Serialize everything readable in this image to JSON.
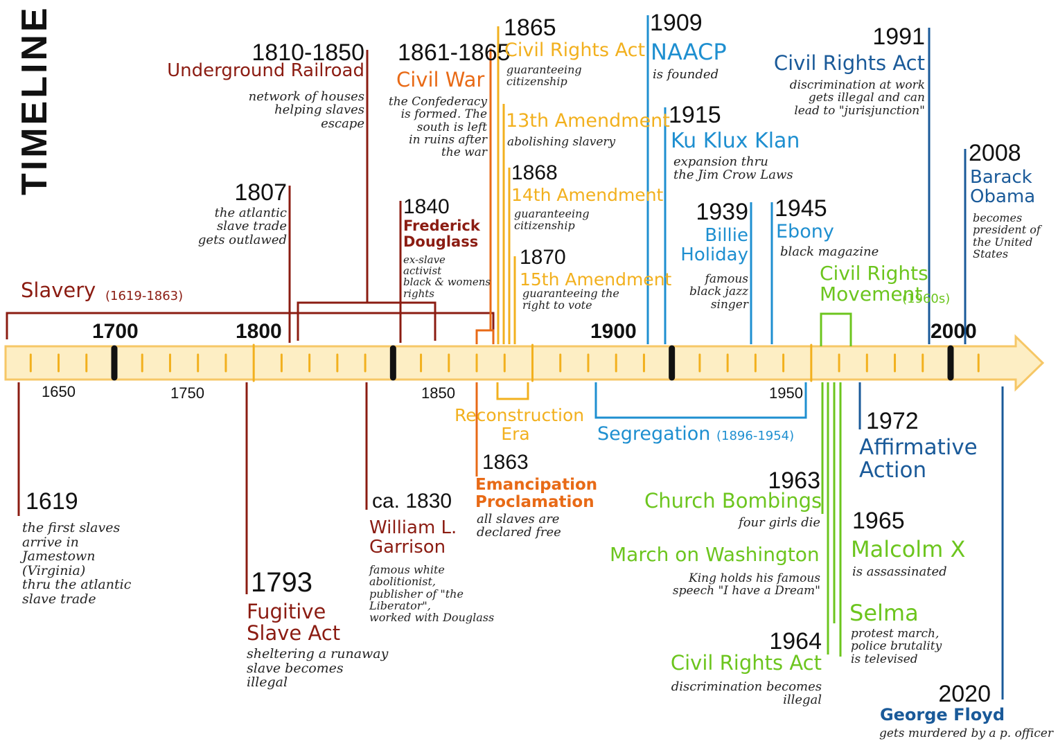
{
  "title": "TIMELINE",
  "colors": {
    "darkred": "#8b1c12",
    "orange": "#e86a16",
    "yellow": "#f2b01e",
    "lightblue": "#1e8fd0",
    "darkblue": "#1a5a99",
    "green": "#6cc51e",
    "axis_fill": "#fdeec4",
    "axis_edge": "#f6c766"
  },
  "axis": {
    "major_labels": [
      "1700",
      "1800",
      "1900",
      "2000"
    ],
    "minor_labels": [
      "1650",
      "1750",
      "1850",
      "1950"
    ]
  },
  "periods": {
    "slavery": {
      "label": "Slavery",
      "range": "(1619-1863)"
    },
    "reconstruction": {
      "label": "Reconstruction\nEra"
    },
    "segregation": {
      "label": "Segregation",
      "range": "(1896-1954)"
    },
    "civil_rights_movement": {
      "label": "Civil Rights\nMovement",
      "range": "(1960s)"
    }
  },
  "events": {
    "underground_railroad": {
      "year": "1810-1850",
      "title": "Underground Railroad",
      "desc": "network of houses\nhelping slaves\nescape"
    },
    "slave_trade_outlawed": {
      "year": "1807",
      "desc": "the atlantic\nslave trade\ngets outlawed"
    },
    "civil_war": {
      "year": "1861-1865",
      "title": "Civil War",
      "desc": "the Confederacy\nis formed. The\nsouth is left\nin ruins after\nthe war"
    },
    "douglass": {
      "year": "1840",
      "title": "Frederick\nDouglass",
      "desc": "ex-slave\nactivist\nblack & womens\nrights"
    },
    "cra_1865": {
      "year": "1865",
      "title": "Civil Rights Act",
      "desc": "guaranteeing\ncitizenship"
    },
    "amend_13": {
      "title": "13th Amendment",
      "desc": "abolishing slavery"
    },
    "amend_14": {
      "year": "1868",
      "title": "14th Amendment",
      "desc": "guaranteeing\ncitizenship"
    },
    "amend_15": {
      "year": "1870",
      "title": "15th Amendment",
      "desc": "guaranteeing the\nright to vote"
    },
    "naacp": {
      "year": "1909",
      "title": "NAACP",
      "desc": "is founded"
    },
    "kkk": {
      "year": "1915",
      "title": "Ku Klux Klan",
      "desc": "expansion thru\nthe Jim Crow Laws"
    },
    "billie": {
      "year": "1939",
      "title": "Billie\nHoliday",
      "desc": "famous\nblack jazz\nsinger"
    },
    "ebony": {
      "year": "1945",
      "title": "Ebony",
      "desc": "black magazine"
    },
    "cra_1991": {
      "year": "1991",
      "title": "Civil Rights Act",
      "desc": "discrimination at work\ngets illegal and can\nlead to \"jurisjunction\""
    },
    "obama": {
      "year": "2008",
      "title": "Barack\nObama",
      "desc": "becomes\npresident of\nthe United\nStates"
    },
    "first_slaves": {
      "year": "1619",
      "desc": "the first slaves\narrive in\nJamestown\n(Virginia)\nthru the atlantic\nslave trade"
    },
    "fugitive": {
      "year": "1793",
      "title": "Fugitive\nSlave Act",
      "desc": "sheltering a runaway\nslave becomes\nillegal"
    },
    "garrison": {
      "year": "ca. 1830",
      "title": "William L.\nGarrison",
      "desc": "famous white\nabolitionist,\npublisher of \"the\nLiberator\",\nworked with Douglass"
    },
    "emancipation": {
      "year": "1863",
      "title": "Emancipation\nProclamation",
      "desc": "all slaves are\ndeclared free"
    },
    "affirmative": {
      "year": "1972",
      "title": "Affirmative\nAction"
    },
    "church": {
      "year": "1963",
      "title": "Church Bombings",
      "desc": "four girls die"
    },
    "march": {
      "title": "March on Washington",
      "desc": "King holds his famous\nspeech \"I have a Dream\""
    },
    "malcolm": {
      "year": "1965",
      "title": "Malcolm X",
      "desc": "is assassinated"
    },
    "selma": {
      "title": "Selma",
      "desc": "protest march,\npolice brutality\nis televised"
    },
    "cra_1964": {
      "year": "1964",
      "title": "Civil Rights Act",
      "desc": "discrimination becomes\nillegal"
    },
    "floyd": {
      "year": "2020",
      "title": "George Floyd",
      "desc": "gets murdered by a p. officer"
    }
  }
}
